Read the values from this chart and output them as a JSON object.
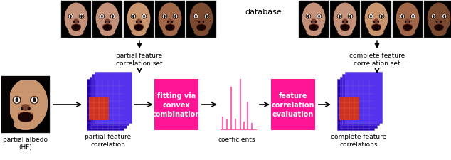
{
  "fig_width": 6.34,
  "fig_height": 2.26,
  "dpi": 100,
  "bg_color": "#ffffff",
  "pink_color": "#FF1493",
  "pink_line_color": "#FF69B4",
  "arrow_color": "#000000",
  "text_color": "#000000",
  "white_text": "#ffffff",
  "box1_label": "fitting via\nconvex\ncombination",
  "box2_label": "feature\ncorrelation\nevaluation",
  "label_partial_albedo": "partial albedo\n(HF)",
  "label_partial_feature": "partial feature\ncorrelation",
  "label_partial_set": "partial feature\ncorrelation set",
  "label_database": "database",
  "label_complete_set": "complete feature\ncorrelation set",
  "label_coefficients": "coefficients",
  "label_complete_feature": "complete feature\ncorrelations",
  "font_size_label": 6.5,
  "font_size_box": 7.0,
  "font_size_db": 8.0
}
